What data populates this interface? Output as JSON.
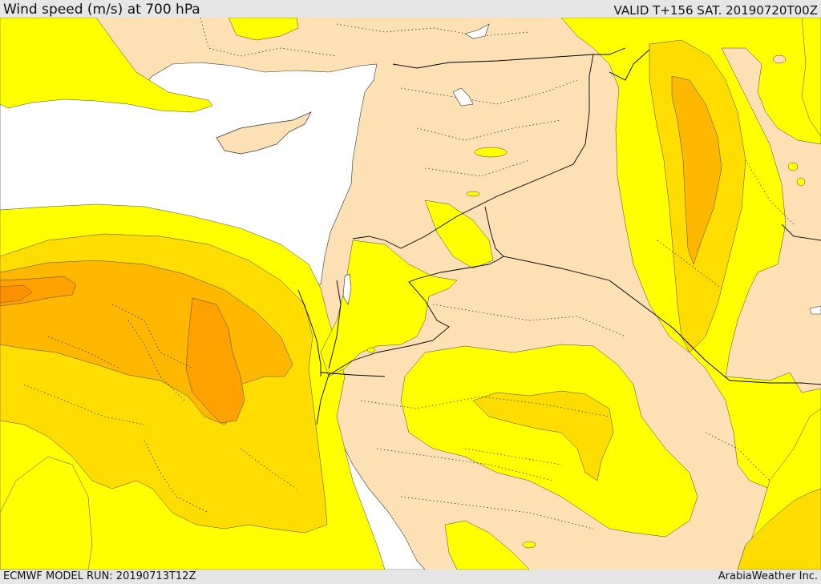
{
  "header": {
    "title": "Wind speed (m/s) at 700 hPa",
    "valid": "VALID T+156 SAT. 20190720T00Z"
  },
  "footer": {
    "model_run": "ECMWF MODEL RUN: 20190713T12Z",
    "credit": "ArabiaWeather Inc."
  },
  "colors": {
    "land": "#fde0b3",
    "sea": "#ffffff",
    "yellow": "#ffff00",
    "gold": "#ffdd00",
    "amber": "#ffb800",
    "orange": "#ffa200",
    "deep": "#ff8c00",
    "border": "#000000"
  }
}
